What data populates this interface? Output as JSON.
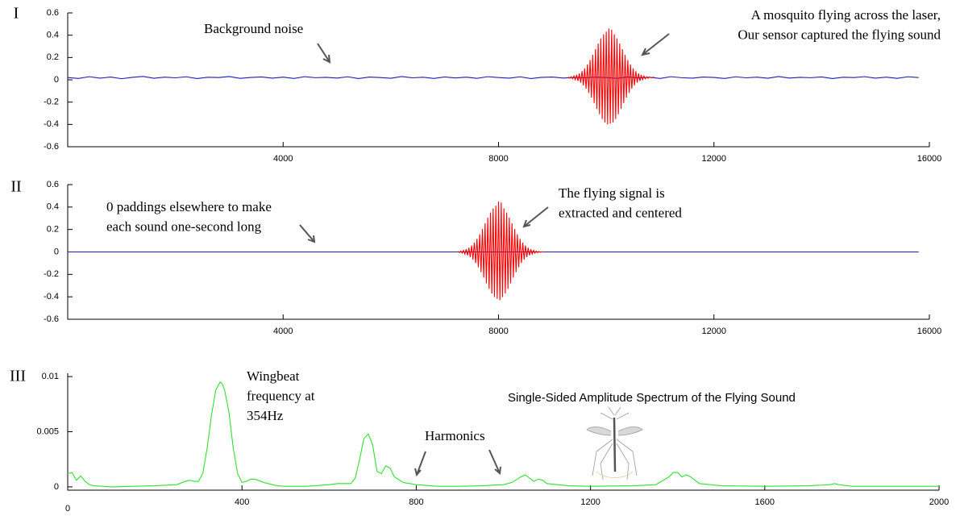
{
  "chart_data": [
    {
      "type": "line",
      "label": "I",
      "xlim": [
        0,
        16000
      ],
      "xticks": [
        4000,
        8000,
        12000,
        16000
      ],
      "ylim": [
        -0.6,
        0.6
      ],
      "yticks": [
        0.6,
        0.4,
        0.2,
        0,
        -0.2,
        -0.4,
        -0.6
      ],
      "annotations": [
        {
          "lines": [
            "Background noise"
          ]
        },
        {
          "lines": [
            "A mosquito flying across the laser,",
            "Our sensor captured the flying sound"
          ]
        }
      ],
      "series": [
        {
          "color": "#1c1cb4",
          "x": [
            0,
            200,
            400,
            600,
            800,
            1000,
            1200,
            1400,
            1600,
            1800,
            2000,
            2200,
            2400,
            2600,
            2800,
            3000,
            3200,
            3400,
            3600,
            3800,
            4000,
            4200,
            4400,
            4600,
            4800,
            5000,
            5200,
            5400,
            5600,
            5800,
            6000,
            6200,
            6400,
            6600,
            6800,
            7000,
            7200,
            7400,
            7600,
            7800,
            8000,
            8200,
            8400,
            8600,
            8800,
            9000,
            9200,
            9400,
            9600,
            9800,
            10000,
            10200,
            10400,
            10600,
            10800,
            11000,
            11200,
            11400,
            11600,
            11800,
            12000,
            12200,
            12400,
            12600,
            12800,
            13000,
            13200,
            13400,
            13600,
            13800,
            14000,
            14200,
            14400,
            14600,
            14800,
            15000,
            15200,
            15400,
            15600,
            15800
          ],
          "values": [
            0.02,
            0.012,
            0.028,
            0.015,
            0.025,
            0.01,
            0.022,
            0.03,
            0.014,
            0.024,
            0.018,
            0.027,
            0.011,
            0.023,
            0.02,
            0.029,
            0.013,
            0.021,
            0.026,
            0.015,
            0.024,
            0.012,
            0.028,
            0.019,
            0.022,
            0.016,
            0.027,
            0.011,
            0.025,
            0.02,
            0.014,
            0.029,
            0.018,
            0.023,
            0.012,
            0.026,
            0.017,
            0.024,
            0.013,
            0.028,
            0.02,
            0.015,
            0.027,
            0.011,
            0.022,
            0.025,
            0.016,
            0.021,
            0.018,
            0.024,
            0.02,
            0.013,
            0.026,
            0.017,
            0.023,
            0.012,
            0.028,
            0.019,
            0.015,
            0.025,
            0.021,
            0.012,
            0.027,
            0.018,
            0.024,
            0.014,
            0.029,
            0.016,
            0.022,
            0.019,
            0.026,
            0.011,
            0.023,
            0.02,
            0.028,
            0.015,
            0.024,
            0.013,
            0.027,
            0.02
          ]
        },
        {
          "color": "#ff0000",
          "x": [
            9300,
            9325,
            9350,
            9375,
            9400,
            9425,
            9450,
            9475,
            9500,
            9525,
            9550,
            9575,
            9600,
            9625,
            9650,
            9675,
            9700,
            9725,
            9750,
            9775,
            9800,
            9825,
            9850,
            9875,
            9900,
            9925,
            9950,
            9975,
            10000,
            10025,
            10050,
            10075,
            10100,
            10125,
            10150,
            10175,
            10200,
            10225,
            10250,
            10275,
            10300,
            10325,
            10350,
            10375,
            10400,
            10425,
            10450,
            10475,
            10500,
            10525,
            10550,
            10575,
            10600,
            10625,
            10650,
            10675,
            10700,
            10725,
            10750,
            10775,
            10800,
            10825,
            10850,
            10875,
            10900
          ],
          "values": [
            0.025,
            0.014,
            0.028,
            0.009,
            0.034,
            0.001,
            0.044,
            -0.01,
            0.057,
            -0.026,
            0.077,
            -0.049,
            0.103,
            -0.079,
            0.137,
            -0.117,
            0.178,
            -0.16,
            0.224,
            -0.209,
            0.275,
            -0.26,
            0.325,
            -0.309,
            0.371,
            -0.351,
            0.408,
            -0.382,
            0.432,
            -0.398,
            0.46,
            -0.39,
            0.45,
            -0.382,
            0.408,
            -0.351,
            0.371,
            -0.309,
            0.325,
            -0.26,
            0.275,
            -0.209,
            0.224,
            -0.16,
            0.178,
            -0.117,
            0.137,
            -0.079,
            0.103,
            -0.049,
            0.077,
            -0.026,
            0.057,
            -0.01,
            0.044,
            0.001,
            0.034,
            0.009,
            0.028,
            0.014,
            0.025,
            0.02,
            0.018,
            0.022,
            0.02
          ]
        }
      ]
    },
    {
      "type": "line",
      "label": "II",
      "xlim": [
        0,
        16000
      ],
      "xticks": [
        4000,
        8000,
        12000,
        16000
      ],
      "ylim": [
        -0.6,
        0.6
      ],
      "yticks": [
        0.6,
        0.4,
        0.2,
        0,
        -0.2,
        -0.4,
        -0.6
      ],
      "annotations": [
        {
          "lines": [
            "0 paddings elsewhere to make",
            "each sound one-second long"
          ]
        },
        {
          "lines": [
            "The flying signal is",
            "extracted and centered"
          ]
        }
      ],
      "series": [
        {
          "color": "#1c1cb4",
          "x": [
            0,
            15800
          ],
          "values": [
            0,
            0
          ]
        },
        {
          "color": "#ff0000",
          "x": [
            7250,
            7275,
            7300,
            7325,
            7350,
            7375,
            7400,
            7425,
            7450,
            7475,
            7500,
            7525,
            7550,
            7575,
            7600,
            7625,
            7650,
            7675,
            7700,
            7725,
            7750,
            7775,
            7800,
            7825,
            7850,
            7875,
            7900,
            7925,
            7950,
            7975,
            8000,
            8025,
            8050,
            8075,
            8100,
            8125,
            8150,
            8175,
            8200,
            8225,
            8250,
            8275,
            8300,
            8325,
            8350,
            8375,
            8400,
            8425,
            8450,
            8475,
            8500,
            8525,
            8550,
            8575,
            8600,
            8625,
            8650,
            8675,
            8700,
            8725,
            8750,
            8775,
            8800,
            8825,
            8850
          ],
          "values": [
            0.005,
            -0.006,
            0.008,
            -0.011,
            0.014,
            -0.019,
            0.024,
            -0.03,
            0.037,
            -0.046,
            0.057,
            -0.069,
            0.083,
            -0.099,
            0.117,
            -0.137,
            0.158,
            -0.18,
            0.204,
            -0.229,
            0.255,
            -0.28,
            0.305,
            -0.329,
            0.351,
            -0.371,
            0.388,
            -0.402,
            0.412,
            -0.418,
            0.45,
            -0.43,
            0.44,
            -0.402,
            0.388,
            -0.371,
            0.351,
            -0.329,
            0.305,
            -0.28,
            0.255,
            -0.229,
            0.204,
            -0.18,
            0.158,
            -0.137,
            0.117,
            -0.099,
            0.083,
            -0.069,
            0.057,
            -0.046,
            0.037,
            -0.03,
            0.024,
            -0.019,
            0.014,
            -0.011,
            0.008,
            -0.006,
            0.005,
            -0.003,
            0.002,
            -0.001,
            0
          ]
        }
      ]
    },
    {
      "type": "line",
      "label": "III",
      "title": "Single-Sided Amplitude Spectrum of the Flying Sound",
      "xlim": [
        0,
        2000
      ],
      "xticks": [
        0,
        400,
        800,
        1200,
        1600,
        2000
      ],
      "ylim": [
        -0.0003,
        0.0103
      ],
      "yticks": [
        0.01,
        0.005,
        0
      ],
      "annotations": [
        {
          "lines": [
            "Wingbeat",
            "frequency at",
            "354Hz"
          ]
        },
        {
          "lines": [
            "Harmonics"
          ]
        }
      ],
      "series": [
        {
          "color": "#2fe02f",
          "x": [
            0,
            10,
            20,
            30,
            40,
            50,
            60,
            80,
            100,
            150,
            200,
            250,
            270,
            280,
            290,
            300,
            310,
            320,
            330,
            340,
            350,
            354,
            360,
            370,
            380,
            390,
            400,
            410,
            420,
            430,
            450,
            480,
            500,
            550,
            600,
            620,
            650,
            660,
            670,
            680,
            690,
            700,
            710,
            720,
            730,
            740,
            750,
            770,
            800,
            850,
            900,
            950,
            1000,
            1020,
            1040,
            1050,
            1060,
            1070,
            1080,
            1090,
            1100,
            1150,
            1200,
            1300,
            1350,
            1380,
            1390,
            1400,
            1410,
            1420,
            1430,
            1450,
            1500,
            1600,
            1700,
            1750,
            1760,
            1770,
            1800,
            1900,
            2000
          ],
          "values": [
            0.0012,
            0.0013,
            0.0006,
            0.001,
            0.0005,
            0.0002,
            0.0001,
            5e-05,
            0,
            5e-05,
            0.0001,
            0.0002,
            0.0005,
            0.0006,
            0.0005,
            0.0005,
            0.0012,
            0.0035,
            0.0065,
            0.0088,
            0.0095,
            0.0094,
            0.0088,
            0.0068,
            0.0035,
            0.0012,
            0.0004,
            0.0005,
            0.0007,
            0.0007,
            0.0004,
            0.0001,
            5e-05,
            5e-05,
            0.0002,
            0.0003,
            0.0003,
            0.0008,
            0.0025,
            0.0044,
            0.0048,
            0.0038,
            0.0014,
            0.0012,
            0.0019,
            0.0017,
            0.0009,
            0.0004,
            0.0002,
            5e-05,
            5e-05,
            0.0001,
            0.0002,
            0.0004,
            0.0009,
            0.0011,
            0.0008,
            0.0005,
            0.0007,
            0.0006,
            0.0003,
            0.0001,
            5e-05,
            0.0001,
            0.0002,
            0.0009,
            0.0013,
            0.0013,
            0.0009,
            0.0011,
            0.0009,
            0.0003,
            0.0001,
            5e-05,
            0.0001,
            0.0002,
            0.0003,
            0.0002,
            5e-05,
            5e-05,
            5e-05
          ]
        }
      ]
    }
  ]
}
